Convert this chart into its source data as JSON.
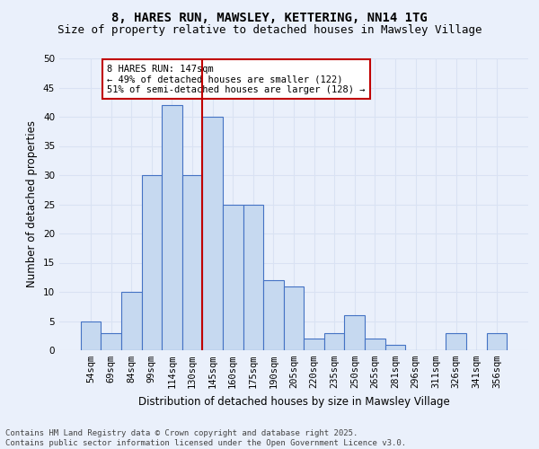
{
  "title": "8, HARES RUN, MAWSLEY, KETTERING, NN14 1TG",
  "subtitle": "Size of property relative to detached houses in Mawsley Village",
  "xlabel": "Distribution of detached houses by size in Mawsley Village",
  "ylabel": "Number of detached properties",
  "bar_labels": [
    "54sqm",
    "69sqm",
    "84sqm",
    "99sqm",
    "114sqm",
    "130sqm",
    "145sqm",
    "160sqm",
    "175sqm",
    "190sqm",
    "205sqm",
    "220sqm",
    "235sqm",
    "250sqm",
    "265sqm",
    "281sqm",
    "296sqm",
    "311sqm",
    "326sqm",
    "341sqm",
    "356sqm"
  ],
  "bar_values": [
    5,
    3,
    10,
    30,
    42,
    30,
    40,
    25,
    25,
    12,
    11,
    2,
    3,
    6,
    2,
    1,
    0,
    0,
    3,
    0,
    3
  ],
  "bar_color": "#c6d9f0",
  "bar_edge_color": "#4472c4",
  "vline_index": 6,
  "vline_color": "#c00000",
  "annotation_text": "8 HARES RUN: 147sqm\n← 49% of detached houses are smaller (122)\n51% of semi-detached houses are larger (128) →",
  "annotation_box_color": "#ffffff",
  "annotation_box_edge_color": "#c00000",
  "ylim": [
    0,
    50
  ],
  "yticks": [
    0,
    5,
    10,
    15,
    20,
    25,
    30,
    35,
    40,
    45,
    50
  ],
  "grid_color": "#d9e2f3",
  "background_color": "#eaf0fb",
  "footnote": "Contains HM Land Registry data © Crown copyright and database right 2025.\nContains public sector information licensed under the Open Government Licence v3.0.",
  "title_fontsize": 10,
  "subtitle_fontsize": 9,
  "axis_label_fontsize": 8.5,
  "tick_fontsize": 7.5,
  "annotation_fontsize": 7.5,
  "footnote_fontsize": 6.5
}
